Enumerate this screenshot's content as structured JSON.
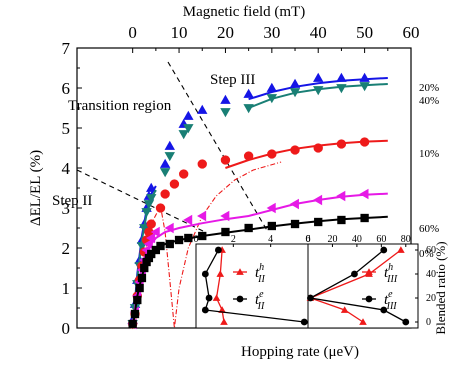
{
  "chart_data": [
    {
      "type": "scatter",
      "xlabel": "Magnetic field (mT)",
      "ylabel": "ΔEL/EL (%)",
      "xlim": [
        -12,
        60
      ],
      "ylim": [
        0,
        7
      ],
      "xticks": [
        0,
        10,
        20,
        30,
        40,
        50,
        60
      ],
      "yticks": [
        0,
        1,
        2,
        3,
        4,
        5,
        6,
        7
      ],
      "xtick_labels": [
        "0",
        "10",
        "20",
        "30",
        "40",
        "50",
        "60"
      ],
      "ytick_labels": [
        "0",
        "1",
        "2",
        "3",
        "4",
        "5",
        "6",
        "7"
      ],
      "annotations": {
        "transition": "Transition region",
        "step2": "Step II",
        "step3": "Step III"
      },
      "series": [
        {
          "name": "20%",
          "color": "#1515e6",
          "marker": "triangle-up",
          "points": [
            [
              0,
              0.2
            ],
            [
              0.5,
              0.6
            ],
            [
              1,
              1.2
            ],
            [
              1.5,
              1.7
            ],
            [
              2,
              2.2
            ],
            [
              2.5,
              2.6
            ],
            [
              3,
              3.0
            ],
            [
              3.5,
              3.3
            ],
            [
              4,
              3.5
            ],
            [
              7,
              4.1
            ],
            [
              8,
              4.55
            ],
            [
              11,
              5.1
            ],
            [
              12,
              5.3
            ],
            [
              15,
              5.45
            ],
            [
              20,
              5.7
            ],
            [
              25,
              5.85
            ],
            [
              30,
              6.0
            ],
            [
              35,
              6.1
            ],
            [
              40,
              6.25
            ],
            [
              45,
              6.25
            ],
            [
              50,
              6.25
            ]
          ],
          "fit": [
            [
              25,
              5.72
            ],
            [
              30,
              5.9
            ],
            [
              35,
              6.03
            ],
            [
              40,
              6.12
            ],
            [
              45,
              6.18
            ],
            [
              50,
              6.22
            ],
            [
              55,
              6.25
            ]
          ],
          "fit_rise": [
            [
              0,
              0
            ],
            [
              1,
              1.35
            ],
            [
              2,
              2.3
            ],
            [
              3,
              2.95
            ],
            [
              4,
              3.35
            ],
            [
              5,
              3.55
            ]
          ]
        },
        {
          "name": "40%",
          "color": "#197f75",
          "marker": "triangle-down",
          "points": [
            [
              0,
              0.1
            ],
            [
              0.5,
              0.5
            ],
            [
              1,
              1.1
            ],
            [
              1.5,
              1.55
            ],
            [
              2,
              2.05
            ],
            [
              2.5,
              2.5
            ],
            [
              3,
              2.9
            ],
            [
              3.5,
              3.1
            ],
            [
              4,
              3.25
            ],
            [
              7,
              3.9
            ],
            [
              8,
              4.3
            ],
            [
              11,
              4.85
            ],
            [
              12,
              5.0
            ],
            [
              20,
              5.4
            ],
            [
              25,
              5.5
            ],
            [
              30,
              5.75
            ],
            [
              35,
              5.9
            ],
            [
              40,
              5.95
            ],
            [
              45,
              6.0
            ],
            [
              50,
              6.05
            ]
          ],
          "fit": [
            [
              25,
              5.5
            ],
            [
              30,
              5.73
            ],
            [
              35,
              5.88
            ],
            [
              40,
              5.97
            ],
            [
              45,
              6.03
            ],
            [
              50,
              6.07
            ],
            [
              55,
              6.1
            ]
          ],
          "fit_rise": [
            [
              0,
              0
            ],
            [
              1,
              1.25
            ],
            [
              2,
              2.2
            ],
            [
              3,
              2.85
            ],
            [
              4,
              3.25
            ],
            [
              5,
              3.45
            ]
          ]
        },
        {
          "name": "10%",
          "color": "#ee1a1a",
          "marker": "circle",
          "points": [
            [
              0,
              0.1
            ],
            [
              0.5,
              0.35
            ],
            [
              1,
              0.8
            ],
            [
              1.5,
              1.2
            ],
            [
              2,
              1.55
            ],
            [
              2.5,
              1.9
            ],
            [
              3,
              2.2
            ],
            [
              3.5,
              2.4
            ],
            [
              4,
              2.6
            ],
            [
              6,
              3.0
            ],
            [
              7,
              3.35
            ],
            [
              9,
              3.6
            ],
            [
              11,
              3.85
            ],
            [
              15,
              4.1
            ],
            [
              20,
              4.2
            ],
            [
              25,
              4.3
            ],
            [
              30,
              4.35
            ],
            [
              35,
              4.45
            ],
            [
              40,
              4.5
            ],
            [
              45,
              4.6
            ],
            [
              50,
              4.65
            ]
          ],
          "fit": [
            [
              20,
              4.0
            ],
            [
              25,
              4.2
            ],
            [
              30,
              4.36
            ],
            [
              35,
              4.48
            ],
            [
              40,
              4.56
            ],
            [
              45,
              4.62
            ],
            [
              50,
              4.66
            ],
            [
              55,
              4.68
            ]
          ],
          "dashed": [
            [
              2,
              1.55
            ],
            [
              4,
              2.6
            ],
            [
              6,
              3.05
            ],
            [
              7,
              2.4
            ],
            [
              8,
              1.2
            ],
            [
              9,
              0
            ],
            [
              10,
              1.0
            ],
            [
              12,
              2.0
            ],
            [
              15,
              2.8
            ],
            [
              18,
              3.3
            ],
            [
              22,
              3.7
            ],
            [
              26,
              3.95
            ],
            [
              32,
              4.15
            ]
          ]
        },
        {
          "name": "60%",
          "color": "#e619e6",
          "marker": "triangle-left",
          "points": [
            [
              0,
              0.1
            ],
            [
              0.5,
              0.4
            ],
            [
              1,
              0.8
            ],
            [
              1.5,
              1.15
            ],
            [
              2,
              1.45
            ],
            [
              2.5,
              1.7
            ],
            [
              3,
              1.95
            ],
            [
              3.5,
              2.1
            ],
            [
              4,
              2.25
            ],
            [
              5,
              2.4
            ],
            [
              8,
              2.5
            ],
            [
              12,
              2.7
            ],
            [
              15,
              2.8
            ],
            [
              20,
              2.8
            ],
            [
              30,
              3.0
            ],
            [
              35,
              3.1
            ],
            [
              40,
              3.2
            ],
            [
              45,
              3.3
            ],
            [
              50,
              3.35
            ]
          ],
          "fit": [
            [
              0,
              0
            ],
            [
              1,
              0.95
            ],
            [
              2,
              1.55
            ],
            [
              3,
              1.9
            ],
            [
              4,
              2.1
            ],
            [
              5,
              2.25
            ],
            [
              7,
              2.4
            ],
            [
              10,
              2.5
            ],
            [
              15,
              2.62
            ],
            [
              20,
              2.72
            ],
            [
              25,
              2.8
            ],
            [
              30,
              2.95
            ],
            [
              35,
              3.1
            ],
            [
              40,
              3.2
            ],
            [
              45,
              3.28
            ],
            [
              50,
              3.33
            ],
            [
              55,
              3.36
            ]
          ]
        },
        {
          "name": "0%",
          "color": "#000000",
          "marker": "square",
          "points": [
            [
              0,
              0.1
            ],
            [
              0.5,
              0.35
            ],
            [
              1,
              0.7
            ],
            [
              1.5,
              1.0
            ],
            [
              2,
              1.25
            ],
            [
              2.5,
              1.5
            ],
            [
              3,
              1.65
            ],
            [
              3.5,
              1.75
            ],
            [
              4,
              1.85
            ],
            [
              5,
              1.95
            ],
            [
              6,
              2.05
            ],
            [
              8,
              2.1
            ],
            [
              10,
              2.2
            ],
            [
              12,
              2.25
            ],
            [
              15,
              2.3
            ],
            [
              20,
              2.4
            ],
            [
              25,
              2.5
            ],
            [
              30,
              2.55
            ],
            [
              35,
              2.6
            ],
            [
              40,
              2.65
            ],
            [
              45,
              2.7
            ],
            [
              50,
              2.75
            ]
          ],
          "fit": [
            [
              0,
              0
            ],
            [
              1,
              0.8
            ],
            [
              2,
              1.3
            ],
            [
              3,
              1.65
            ],
            [
              4,
              1.85
            ],
            [
              5,
              1.97
            ],
            [
              7,
              2.1
            ],
            [
              10,
              2.2
            ],
            [
              15,
              2.3
            ],
            [
              20,
              2.38
            ],
            [
              25,
              2.46
            ],
            [
              30,
              2.54
            ],
            [
              35,
              2.61
            ],
            [
              40,
              2.67
            ],
            [
              45,
              2.72
            ],
            [
              50,
              2.75
            ],
            [
              55,
              2.78
            ]
          ]
        }
      ]
    },
    {
      "type": "line",
      "xlabel": "Hopping rate (μeV)",
      "ylabel": "Blended ratio (%)",
      "xlim": [
        0,
        6
      ],
      "ylim": [
        -5,
        65
      ],
      "xticks": [
        0,
        2,
        4,
        6
      ],
      "xtick_labels": [
        "0",
        "2",
        "4",
        "6"
      ],
      "series": [
        {
          "name": "t_II^h",
          "color": "#ee1a1a",
          "marker": "triangle-up",
          "points": [
            [
              1.4,
              60
            ],
            [
              1.3,
              40
            ],
            [
              1.1,
              20
            ],
            [
              1.4,
              10
            ],
            [
              1.5,
              0
            ]
          ]
        },
        {
          "name": "t_II^e",
          "color": "#000000",
          "marker": "circle",
          "points": [
            [
              1.2,
              60
            ],
            [
              0.5,
              40
            ],
            [
              0.7,
              20
            ],
            [
              0.5,
              10
            ],
            [
              5.8,
              0
            ]
          ]
        }
      ]
    },
    {
      "type": "line",
      "xlabel": "",
      "ylabel": "Blended ratio (%)",
      "xlim": [
        0,
        90
      ],
      "ylim": [
        -5,
        65
      ],
      "xticks": [
        0,
        20,
        40,
        60,
        80
      ],
      "xtick_labels": [
        "0",
        "20",
        "40",
        "60",
        "80"
      ],
      "yticks": [
        0,
        20,
        40,
        60
      ],
      "ytick_labels": [
        "0",
        "20",
        "40",
        "60"
      ],
      "series": [
        {
          "name": "t_III^h",
          "color": "#ee1a1a",
          "marker": "triangle-up",
          "points": [
            [
              76,
              60
            ],
            [
              50,
              40
            ],
            [
              2,
              20
            ],
            [
              30,
              10
            ],
            [
              45,
              0
            ]
          ]
        },
        {
          "name": "t_III^e",
          "color": "#000000",
          "marker": "circle",
          "points": [
            [
              62,
              60
            ],
            [
              38,
              40
            ],
            [
              2,
              20
            ],
            [
              62,
              10
            ],
            [
              80,
              0
            ]
          ]
        }
      ]
    }
  ]
}
